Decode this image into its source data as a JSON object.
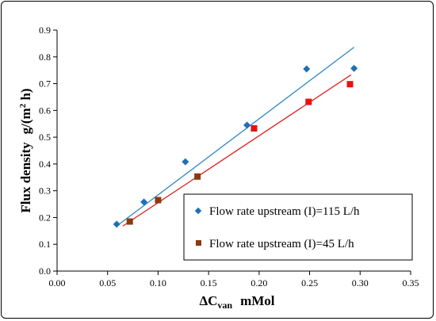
{
  "chart_data": {
    "type": "scatter",
    "title": "",
    "xlabel": {
      "main": "ΔC",
      "sub": "van",
      "unit": "mMol"
    },
    "ylabel": {
      "main": "Flux density",
      "unit": "g/(m",
      "sup": "2",
      "unit_end": " h)"
    },
    "xlim": [
      0.0,
      0.35
    ],
    "ylim": [
      0.0,
      0.9
    ],
    "xticks": [
      0.0,
      0.05,
      0.1,
      0.15,
      0.2,
      0.25,
      0.3,
      0.35
    ],
    "xtick_labels": [
      "0.00",
      "0.05",
      "0.10",
      "0.15",
      "0.20",
      "0.25",
      "0.30",
      "0.35"
    ],
    "yticks": [
      0.0,
      0.1,
      0.2,
      0.3,
      0.4,
      0.5,
      0.6,
      0.7,
      0.8,
      0.9
    ],
    "ytick_labels": [
      "0.0",
      "0.1",
      "0.2",
      "0.3",
      "0.4",
      "0.5",
      "0.6",
      "0.7",
      "0.8",
      "0.9"
    ],
    "grid": false,
    "legend_position": "bottom-right",
    "series": [
      {
        "name": "Flow rate upstream (I)=115 L/h",
        "marker": "diamond",
        "color": "#1f6fb4",
        "x": [
          0.059,
          0.086,
          0.127,
          0.188,
          0.247,
          0.294
        ],
        "y": [
          0.175,
          0.258,
          0.408,
          0.545,
          0.755,
          0.757
        ],
        "trendline": {
          "x": [
            0.059,
            0.294
          ],
          "y": [
            0.168,
            0.836
          ],
          "color": "#2e86c1"
        }
      },
      {
        "name": "Flow rate upstream (I)=45 L/h",
        "marker": "square",
        "color": "#8b3a0e",
        "x": [
          0.072,
          0.1,
          0.139,
          0.195,
          0.249,
          0.29
        ],
        "y": [
          0.185,
          0.265,
          0.353,
          0.533,
          0.632,
          0.698
        ],
        "trendline": {
          "x": [
            0.065,
            0.291
          ],
          "y": [
            0.168,
            0.733
          ],
          "color": "#e02020"
        }
      }
    ]
  }
}
